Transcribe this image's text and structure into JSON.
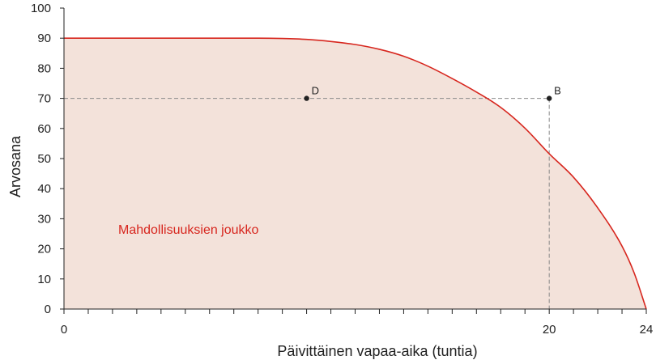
{
  "chart_data": {
    "type": "area",
    "xlabel": "Päivittäinen vapaa-aika (tuntia)",
    "ylabel": "Arvosana",
    "xlim": [
      0,
      24
    ],
    "ylim": [
      0,
      100
    ],
    "x_tick_labels": [
      {
        "x": 0,
        "label": "0"
      },
      {
        "x": 20,
        "label": "20"
      },
      {
        "x": 24,
        "label": "24"
      }
    ],
    "x_minor_ticks": [
      1,
      2,
      3,
      4,
      5,
      6,
      7,
      8,
      9,
      10,
      11,
      12,
      13,
      14,
      15,
      16,
      17,
      18,
      19,
      21,
      22,
      23
    ],
    "y_ticks": [
      0,
      10,
      20,
      30,
      40,
      50,
      60,
      70,
      80,
      90,
      100
    ],
    "frontier": {
      "x": [
        0,
        4,
        8,
        9,
        10,
        11,
        12,
        13,
        14,
        15,
        16,
        17,
        18,
        19,
        20,
        21,
        22,
        23,
        23.5,
        24
      ],
      "y": [
        90,
        90,
        90,
        89.9,
        89.6,
        88.9,
        87.9,
        86.3,
        84.0,
        80.7,
        76.6,
        72.1,
        67.0,
        60.1,
        51.6,
        43.8,
        33.6,
        20.9,
        12.0,
        0
      ]
    },
    "region_label": "Mahdollisuuksien joukko",
    "points": [
      {
        "label": "D",
        "x": 10,
        "y": 70
      },
      {
        "label": "B",
        "x": 20,
        "y": 70
      }
    ],
    "guide_y": 70,
    "colors": {
      "frontier": "#d7261e",
      "fill": "#f3e2da",
      "points": "#222222",
      "guides": "#8a8a8a",
      "axis": "#222222"
    }
  }
}
